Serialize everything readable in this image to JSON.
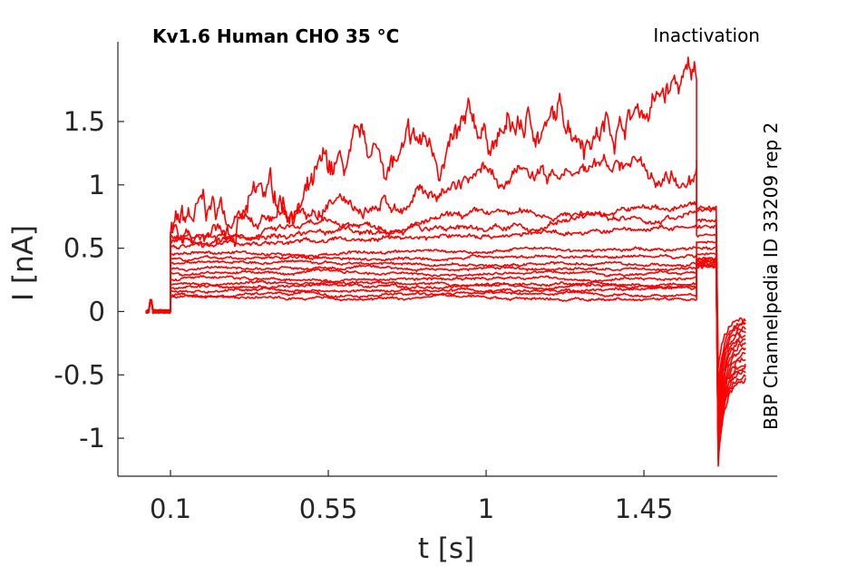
{
  "chart_data": {
    "type": "line",
    "title": "Kv1.6  Human  CHO  35 °C",
    "protocol_label": "Inactivation",
    "side_label": "BBP Channelpedia ID 33209 rep 2",
    "xlabel": "t [s]",
    "ylabel": "I [nA]",
    "xlim": [
      -0.05,
      1.83
    ],
    "ylim": [
      -1.3,
      2.13
    ],
    "xticks": [
      0.1,
      0.55,
      1,
      1.45
    ],
    "xtick_labels": [
      "0.1",
      "0.55",
      "1",
      "1.45"
    ],
    "yticks": [
      -1,
      -0.5,
      0,
      0.5,
      1,
      1.5
    ],
    "ytick_labels": [
      "-1",
      "-0.5",
      "0",
      "0.5",
      "1",
      "1.5"
    ],
    "grid": false,
    "line_color": "#ff0000",
    "baseline_window": [
      0.0,
      0.1
    ],
    "step_end": 1.6,
    "tail_end": 1.66,
    "second_step_end": 1.74,
    "series": [
      {
        "step_start": 0.59,
        "step_end": 1.78,
        "tail": 0.82,
        "trough": -0.45,
        "final": -0.05
      },
      {
        "step_start": 0.59,
        "step_end": 1.2,
        "tail": 0.8,
        "trough": -0.6,
        "final": -0.07
      },
      {
        "step_start": 0.6,
        "step_end": 0.83,
        "tail": 0.72,
        "trough": -0.65,
        "final": -0.09
      },
      {
        "step_start": 0.55,
        "step_end": 0.75,
        "tail": 0.67,
        "trough": -0.72,
        "final": -0.12
      },
      {
        "step_start": 0.52,
        "step_end": 0.66,
        "tail": 0.6,
        "trough": -0.8,
        "final": -0.14
      },
      {
        "step_start": 0.45,
        "step_end": 0.5,
        "tail": 0.55,
        "trough": -0.88,
        "final": -0.17
      },
      {
        "step_start": 0.42,
        "step_end": 0.44,
        "tail": 0.5,
        "trough": -0.95,
        "final": -0.2
      },
      {
        "step_start": 0.38,
        "step_end": 0.38,
        "tail": 0.45,
        "trough": -1.0,
        "final": -0.24
      },
      {
        "step_start": 0.34,
        "step_end": 0.34,
        "tail": 0.42,
        "trough": -1.05,
        "final": -0.28
      },
      {
        "step_start": 0.3,
        "step_end": 0.3,
        "tail": 0.41,
        "trough": -1.08,
        "final": -0.32
      },
      {
        "step_start": 0.26,
        "step_end": 0.26,
        "tail": 0.4,
        "trough": -1.1,
        "final": -0.36
      },
      {
        "step_start": 0.22,
        "step_end": 0.22,
        "tail": 0.39,
        "trough": -1.12,
        "final": -0.4
      },
      {
        "step_start": 0.19,
        "step_end": 0.2,
        "tail": 0.38,
        "trough": -1.14,
        "final": -0.43
      },
      {
        "step_start": 0.16,
        "step_end": 0.17,
        "tail": 0.37,
        "trough": -1.16,
        "final": -0.46
      },
      {
        "step_start": 0.13,
        "step_end": 0.13,
        "tail": 0.36,
        "trough": -1.18,
        "final": -0.5
      },
      {
        "step_start": 0.11,
        "step_end": 0.11,
        "tail": 0.35,
        "trough": -1.22,
        "final": -0.53
      }
    ]
  }
}
